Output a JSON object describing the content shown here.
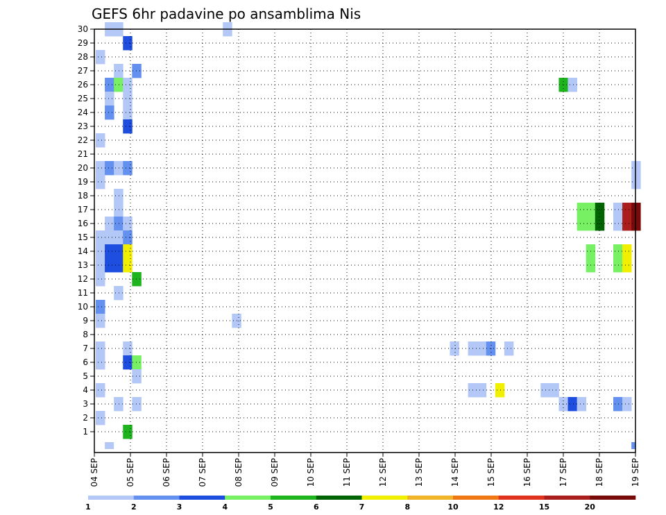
{
  "chart_data": {
    "type": "heatmap",
    "title": "GEFS 6hr padavine po ansamblima Nis",
    "xlabel": "",
    "ylabel": "",
    "x_ticks": [
      "04 SEP",
      "05 SEP",
      "06 SEP",
      "07 SEP",
      "08 SEP",
      "09 SEP",
      "10 SEP",
      "11 SEP",
      "12 SEP",
      "13 SEP",
      "14 SEP",
      "15 SEP",
      "16 SEP",
      "17 SEP",
      "18 SEP",
      "19 SEP"
    ],
    "y_ticks": [
      1,
      2,
      3,
      4,
      5,
      6,
      7,
      8,
      9,
      10,
      11,
      12,
      13,
      14,
      15,
      16,
      17,
      18,
      19,
      20,
      21,
      22,
      23,
      24,
      25,
      26,
      27,
      28,
      29,
      30
    ],
    "time_steps_per_day": 4,
    "num_time_steps": 60,
    "ensemble_members": 30,
    "grid": true,
    "legend": {
      "position": "bottom",
      "labels": [
        "1",
        "2",
        "3",
        "4",
        "5",
        "6",
        "7",
        "8",
        "10",
        "12",
        "15",
        "20"
      ],
      "colors": [
        "#b4c8f8",
        "#6490f0",
        "#1e4ee0",
        "#78f064",
        "#1eb41e",
        "#006400",
        "#f0f000",
        "#f0b428",
        "#f07814",
        "#e1321e",
        "#aa1e1e",
        "#780a0a"
      ]
    },
    "cells": [
      {
        "m": 30,
        "t": 1,
        "c": 0
      },
      {
        "m": 30,
        "t": 2,
        "c": 0
      },
      {
        "m": 30,
        "t": 14,
        "c": 0
      },
      {
        "m": 29,
        "t": 3,
        "c": 2
      },
      {
        "m": 28,
        "t": 0,
        "c": 0
      },
      {
        "m": 27,
        "t": 2,
        "c": 0
      },
      {
        "m": 27,
        "t": 4,
        "c": 1
      },
      {
        "m": 26,
        "t": 1,
        "c": 1
      },
      {
        "m": 26,
        "t": 2,
        "c": 3
      },
      {
        "m": 26,
        "t": 3,
        "c": 0
      },
      {
        "m": 26,
        "t": 51,
        "c": 4
      },
      {
        "m": 26,
        "t": 52,
        "c": 0
      },
      {
        "m": 25,
        "t": 1,
        "c": 0
      },
      {
        "m": 25,
        "t": 3,
        "c": 0
      },
      {
        "m": 24,
        "t": 1,
        "c": 1
      },
      {
        "m": 24,
        "t": 3,
        "c": 0
      },
      {
        "m": 23,
        "t": 3,
        "c": 2
      },
      {
        "m": 22,
        "t": 0,
        "c": 0
      },
      {
        "m": 20,
        "t": 0,
        "c": 0
      },
      {
        "m": 20,
        "t": 1,
        "c": 1
      },
      {
        "m": 20,
        "t": 2,
        "c": 0
      },
      {
        "m": 20,
        "t": 3,
        "c": 1
      },
      {
        "m": 20,
        "t": 59,
        "c": 0
      },
      {
        "m": 19,
        "t": 0,
        "c": 0
      },
      {
        "m": 19,
        "t": 59,
        "c": 0
      },
      {
        "m": 18,
        "t": 2,
        "c": 0
      },
      {
        "m": 17,
        "t": 2,
        "c": 0
      },
      {
        "m": 17,
        "t": 53,
        "c": 3
      },
      {
        "m": 17,
        "t": 54,
        "c": 3
      },
      {
        "m": 17,
        "t": 55,
        "c": 5
      },
      {
        "m": 17,
        "t": 57,
        "c": 0
      },
      {
        "m": 17,
        "t": 58,
        "c": 10
      },
      {
        "m": 17,
        "t": 59,
        "c": 11
      },
      {
        "m": 16,
        "t": 1,
        "c": 0
      },
      {
        "m": 16,
        "t": 2,
        "c": 1
      },
      {
        "m": 16,
        "t": 3,
        "c": 0
      },
      {
        "m": 16,
        "t": 53,
        "c": 3
      },
      {
        "m": 16,
        "t": 54,
        "c": 3
      },
      {
        "m": 16,
        "t": 55,
        "c": 5
      },
      {
        "m": 16,
        "t": 57,
        "c": 0
      },
      {
        "m": 16,
        "t": 58,
        "c": 10
      },
      {
        "m": 16,
        "t": 59,
        "c": 11
      },
      {
        "m": 15,
        "t": 0,
        "c": 0
      },
      {
        "m": 15,
        "t": 1,
        "c": 0
      },
      {
        "m": 15,
        "t": 2,
        "c": 0
      },
      {
        "m": 15,
        "t": 3,
        "c": 1
      },
      {
        "m": 14,
        "t": 0,
        "c": 0
      },
      {
        "m": 14,
        "t": 1,
        "c": 2
      },
      {
        "m": 14,
        "t": 2,
        "c": 2
      },
      {
        "m": 14,
        "t": 3,
        "c": 6
      },
      {
        "m": 14,
        "t": 54,
        "c": 3
      },
      {
        "m": 14,
        "t": 57,
        "c": 3
      },
      {
        "m": 14,
        "t": 58,
        "c": 6
      },
      {
        "m": 13,
        "t": 0,
        "c": 0
      },
      {
        "m": 13,
        "t": 1,
        "c": 2
      },
      {
        "m": 13,
        "t": 2,
        "c": 2
      },
      {
        "m": 13,
        "t": 3,
        "c": 6
      },
      {
        "m": 13,
        "t": 54,
        "c": 3
      },
      {
        "m": 13,
        "t": 57,
        "c": 3
      },
      {
        "m": 13,
        "t": 58,
        "c": 6
      },
      {
        "m": 12,
        "t": 0,
        "c": 0
      },
      {
        "m": 12,
        "t": 4,
        "c": 4
      },
      {
        "m": 11,
        "t": 2,
        "c": 0
      },
      {
        "m": 10,
        "t": 0,
        "c": 1
      },
      {
        "m": 9,
        "t": 0,
        "c": 0
      },
      {
        "m": 9,
        "t": 15,
        "c": 0
      },
      {
        "m": 7,
        "t": 0,
        "c": 0
      },
      {
        "m": 7,
        "t": 3,
        "c": 0
      },
      {
        "m": 7,
        "t": 39,
        "c": 0
      },
      {
        "m": 7,
        "t": 41,
        "c": 0
      },
      {
        "m": 7,
        "t": 42,
        "c": 0
      },
      {
        "m": 7,
        "t": 43,
        "c": 1
      },
      {
        "m": 7,
        "t": 45,
        "c": 0
      },
      {
        "m": 6,
        "t": 0,
        "c": 0
      },
      {
        "m": 6,
        "t": 3,
        "c": 2
      },
      {
        "m": 6,
        "t": 4,
        "c": 3
      },
      {
        "m": 5,
        "t": 4,
        "c": 0
      },
      {
        "m": 4,
        "t": 0,
        "c": 0
      },
      {
        "m": 4,
        "t": 41,
        "c": 0
      },
      {
        "m": 4,
        "t": 42,
        "c": 0
      },
      {
        "m": 4,
        "t": 44,
        "c": 6
      },
      {
        "m": 4,
        "t": 49,
        "c": 0
      },
      {
        "m": 4,
        "t": 50,
        "c": 0
      },
      {
        "m": 3,
        "t": 2,
        "c": 0
      },
      {
        "m": 3,
        "t": 4,
        "c": 0
      },
      {
        "m": 3,
        "t": 51,
        "c": 0
      },
      {
        "m": 3,
        "t": 52,
        "c": 2
      },
      {
        "m": 3,
        "t": 53,
        "c": 0
      },
      {
        "m": 3,
        "t": 57,
        "c": 1
      },
      {
        "m": 3,
        "t": 58,
        "c": 0
      },
      {
        "m": 2,
        "t": 0,
        "c": 0
      },
      {
        "m": 1,
        "t": 3,
        "c": 4
      }
    ],
    "partial_cells": [
      {
        "m": 0,
        "t": 1,
        "c": 0
      },
      {
        "m": 0,
        "t": 59,
        "c": 1
      }
    ]
  }
}
